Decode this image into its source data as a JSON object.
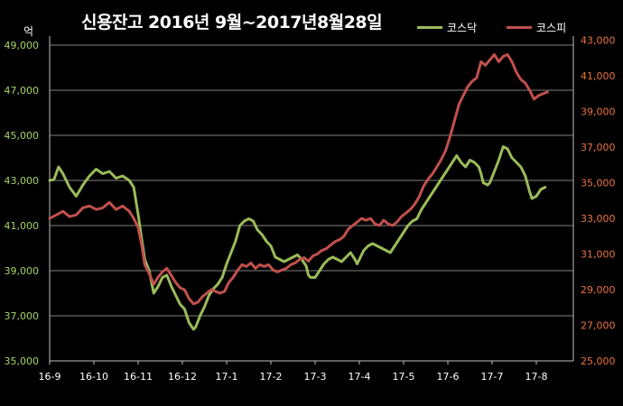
{
  "chart_data": {
    "type": "line",
    "title": "신용잔고 2016년 9월~2017년8월28일",
    "unit_label": "억",
    "grid": true,
    "legend_position": "top-right",
    "x_tick_labels": [
      "16-9",
      "16-10",
      "16-11",
      "16-12",
      "17-1",
      "17-2",
      "17-3",
      "17-4",
      "17-5",
      "17-6",
      "17-7",
      "17-8"
    ],
    "left_axis": {
      "range": [
        35000,
        50000
      ],
      "ticks": [
        35000,
        37000,
        39000,
        41000,
        43000,
        45000,
        47000,
        49000
      ],
      "tick_labels": [
        "35,000",
        "37,000",
        "39,000",
        "41,000",
        "43,000",
        "45,000",
        "47,000",
        "49,000"
      ],
      "color": "#a6d466"
    },
    "right_axis": {
      "range": [
        25000,
        44000
      ],
      "ticks": [
        25000,
        27000,
        29000,
        31000,
        33000,
        35000,
        37000,
        39000,
        41000,
        43000
      ],
      "tick_labels": [
        "25,000",
        "27,000",
        "29,000",
        "31,000",
        "33,000",
        "35,000",
        "37,000",
        "39,000",
        "41,000",
        "43,000"
      ],
      "color": "#e8733e"
    },
    "series": [
      {
        "name": "코스닥",
        "axis": "left",
        "color": "#9bbb59",
        "points": [
          [
            0,
            43000
          ],
          [
            0.1,
            43050
          ],
          [
            0.2,
            43600
          ],
          [
            0.3,
            43300
          ],
          [
            0.45,
            42700
          ],
          [
            0.6,
            42300
          ],
          [
            0.75,
            42800
          ],
          [
            0.9,
            43200
          ],
          [
            1.05,
            43500
          ],
          [
            1.2,
            43300
          ],
          [
            1.35,
            43400
          ],
          [
            1.5,
            43100
          ],
          [
            1.65,
            43200
          ],
          [
            1.8,
            43000
          ],
          [
            1.9,
            42700
          ],
          [
            2.0,
            41500
          ],
          [
            2.08,
            40400
          ],
          [
            2.15,
            39500
          ],
          [
            2.25,
            39000
          ],
          [
            2.35,
            38000
          ],
          [
            2.45,
            38300
          ],
          [
            2.55,
            38700
          ],
          [
            2.65,
            38800
          ],
          [
            2.75,
            38300
          ],
          [
            2.85,
            37900
          ],
          [
            2.95,
            37500
          ],
          [
            3.05,
            37300
          ],
          [
            3.15,
            36700
          ],
          [
            3.25,
            36400
          ],
          [
            3.3,
            36500
          ],
          [
            3.4,
            37000
          ],
          [
            3.5,
            37400
          ],
          [
            3.6,
            37900
          ],
          [
            3.7,
            38200
          ],
          [
            3.8,
            38400
          ],
          [
            3.9,
            38700
          ],
          [
            4.0,
            39300
          ],
          [
            4.1,
            39800
          ],
          [
            4.2,
            40300
          ],
          [
            4.3,
            41000
          ],
          [
            4.4,
            41200
          ],
          [
            4.5,
            41300
          ],
          [
            4.6,
            41200
          ],
          [
            4.7,
            40800
          ],
          [
            4.8,
            40600
          ],
          [
            4.9,
            40300
          ],
          [
            5.0,
            40100
          ],
          [
            5.1,
            39600
          ],
          [
            5.2,
            39500
          ],
          [
            5.3,
            39400
          ],
          [
            5.4,
            39500
          ],
          [
            5.5,
            39600
          ],
          [
            5.6,
            39700
          ],
          [
            5.7,
            39500
          ],
          [
            5.8,
            39200
          ],
          [
            5.85,
            38800
          ],
          [
            5.9,
            38700
          ],
          [
            6.0,
            38700
          ],
          [
            6.1,
            39000
          ],
          [
            6.2,
            39300
          ],
          [
            6.3,
            39500
          ],
          [
            6.4,
            39600
          ],
          [
            6.5,
            39500
          ],
          [
            6.6,
            39400
          ],
          [
            6.7,
            39600
          ],
          [
            6.8,
            39800
          ],
          [
            6.9,
            39500
          ],
          [
            6.95,
            39300
          ],
          [
            7.0,
            39500
          ],
          [
            7.1,
            39900
          ],
          [
            7.2,
            40100
          ],
          [
            7.3,
            40200
          ],
          [
            7.4,
            40100
          ],
          [
            7.5,
            40000
          ],
          [
            7.6,
            39900
          ],
          [
            7.7,
            39800
          ],
          [
            7.8,
            40100
          ],
          [
            7.9,
            40400
          ],
          [
            8.0,
            40700
          ],
          [
            8.1,
            41000
          ],
          [
            8.2,
            41200
          ],
          [
            8.3,
            41300
          ],
          [
            8.4,
            41700
          ],
          [
            8.5,
            42000
          ],
          [
            8.6,
            42300
          ],
          [
            8.7,
            42600
          ],
          [
            8.8,
            42900
          ],
          [
            8.9,
            43200
          ],
          [
            9.0,
            43500
          ],
          [
            9.1,
            43800
          ],
          [
            9.2,
            44100
          ],
          [
            9.3,
            43800
          ],
          [
            9.4,
            43600
          ],
          [
            9.5,
            43900
          ],
          [
            9.6,
            43800
          ],
          [
            9.7,
            43600
          ],
          [
            9.75,
            43300
          ],
          [
            9.8,
            42900
          ],
          [
            9.9,
            42800
          ],
          [
            9.95,
            42900
          ],
          [
            10.05,
            43400
          ],
          [
            10.15,
            43900
          ],
          [
            10.25,
            44500
          ],
          [
            10.35,
            44400
          ],
          [
            10.45,
            44000
          ],
          [
            10.55,
            43800
          ],
          [
            10.65,
            43600
          ],
          [
            10.75,
            43200
          ],
          [
            10.85,
            42500
          ],
          [
            10.9,
            42200
          ],
          [
            11.0,
            42300
          ],
          [
            11.1,
            42600
          ],
          [
            11.2,
            42700
          ]
        ]
      },
      {
        "name": "코스피",
        "axis": "right",
        "color": "#c0504d",
        "points": [
          [
            0,
            33000
          ],
          [
            0.15,
            33200
          ],
          [
            0.3,
            33400
          ],
          [
            0.45,
            33100
          ],
          [
            0.6,
            33200
          ],
          [
            0.75,
            33600
          ],
          [
            0.9,
            33700
          ],
          [
            1.05,
            33500
          ],
          [
            1.2,
            33600
          ],
          [
            1.35,
            33900
          ],
          [
            1.5,
            33500
          ],
          [
            1.65,
            33700
          ],
          [
            1.8,
            33400
          ],
          [
            1.9,
            33000
          ],
          [
            2.0,
            32500
          ],
          [
            2.08,
            31500
          ],
          [
            2.15,
            30400
          ],
          [
            2.25,
            29900
          ],
          [
            2.35,
            29300
          ],
          [
            2.45,
            29700
          ],
          [
            2.55,
            30000
          ],
          [
            2.65,
            30200
          ],
          [
            2.75,
            29800
          ],
          [
            2.85,
            29400
          ],
          [
            2.95,
            29100
          ],
          [
            3.05,
            29000
          ],
          [
            3.15,
            28500
          ],
          [
            3.25,
            28200
          ],
          [
            3.35,
            28300
          ],
          [
            3.45,
            28600
          ],
          [
            3.55,
            28800
          ],
          [
            3.65,
            29000
          ],
          [
            3.75,
            28900
          ],
          [
            3.85,
            28800
          ],
          [
            3.95,
            28900
          ],
          [
            4.05,
            29400
          ],
          [
            4.15,
            29700
          ],
          [
            4.25,
            30100
          ],
          [
            4.35,
            30400
          ],
          [
            4.45,
            30300
          ],
          [
            4.55,
            30500
          ],
          [
            4.65,
            30200
          ],
          [
            4.75,
            30400
          ],
          [
            4.85,
            30300
          ],
          [
            4.95,
            30400
          ],
          [
            5.05,
            30100
          ],
          [
            5.15,
            30000
          ],
          [
            5.25,
            30100
          ],
          [
            5.35,
            30200
          ],
          [
            5.45,
            30400
          ],
          [
            5.55,
            30500
          ],
          [
            5.65,
            30700
          ],
          [
            5.75,
            30800
          ],
          [
            5.85,
            30600
          ],
          [
            5.95,
            30900
          ],
          [
            6.05,
            31000
          ],
          [
            6.15,
            31200
          ],
          [
            6.25,
            31300
          ],
          [
            6.35,
            31500
          ],
          [
            6.45,
            31700
          ],
          [
            6.55,
            31800
          ],
          [
            6.65,
            32000
          ],
          [
            6.75,
            32400
          ],
          [
            6.85,
            32600
          ],
          [
            6.95,
            32800
          ],
          [
            7.05,
            33000
          ],
          [
            7.15,
            32900
          ],
          [
            7.25,
            33000
          ],
          [
            7.35,
            32700
          ],
          [
            7.45,
            32600
          ],
          [
            7.55,
            32900
          ],
          [
            7.65,
            32700
          ],
          [
            7.75,
            32600
          ],
          [
            7.85,
            32800
          ],
          [
            7.95,
            33100
          ],
          [
            8.05,
            33300
          ],
          [
            8.15,
            33500
          ],
          [
            8.25,
            33800
          ],
          [
            8.35,
            34200
          ],
          [
            8.45,
            34800
          ],
          [
            8.55,
            35200
          ],
          [
            8.65,
            35500
          ],
          [
            8.75,
            35900
          ],
          [
            8.85,
            36300
          ],
          [
            8.95,
            36800
          ],
          [
            9.05,
            37600
          ],
          [
            9.15,
            38500
          ],
          [
            9.25,
            39400
          ],
          [
            9.35,
            39900
          ],
          [
            9.45,
            40400
          ],
          [
            9.55,
            40700
          ],
          [
            9.65,
            40900
          ],
          [
            9.75,
            41800
          ],
          [
            9.85,
            41600
          ],
          [
            9.95,
            41900
          ],
          [
            10.05,
            42200
          ],
          [
            10.15,
            41800
          ],
          [
            10.25,
            42100
          ],
          [
            10.35,
            42200
          ],
          [
            10.45,
            41800
          ],
          [
            10.55,
            41200
          ],
          [
            10.65,
            40800
          ],
          [
            10.75,
            40600
          ],
          [
            10.85,
            40200
          ],
          [
            10.95,
            39700
          ],
          [
            11.05,
            39900
          ],
          [
            11.15,
            40000
          ],
          [
            11.25,
            40100
          ]
        ]
      }
    ]
  }
}
